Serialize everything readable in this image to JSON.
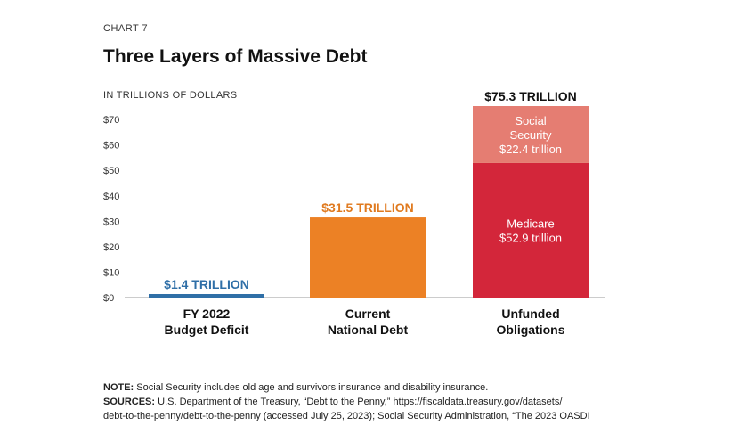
{
  "header": {
    "chart_number": "CHART 7",
    "title": "Three Layers of Massive Debt",
    "unit_label": "IN TRILLIONS OF DOLLARS"
  },
  "chart_data": {
    "type": "bar",
    "title": "Three Layers of Massive Debt",
    "ylabel": "IN TRILLIONS OF DOLLARS",
    "ylim": [
      0,
      75.3
    ],
    "yticks": [
      0,
      10,
      20,
      30,
      40,
      50,
      60,
      70
    ],
    "ytick_labels": [
      "$0",
      "$10",
      "$20",
      "$30",
      "$40",
      "$50",
      "$60",
      "$70"
    ],
    "grid": false,
    "categories": [
      {
        "line1": "FY 2022",
        "line2": "Budget Deficit"
      },
      {
        "line1": "Current",
        "line2": "National Debt"
      },
      {
        "line1": "Unfunded",
        "line2": "Obligations"
      }
    ],
    "bars": [
      {
        "total_label": "$1.4 TRILLION",
        "total_color": "#2f6fa7",
        "segments": [
          {
            "value": 1.4,
            "color": "#2f6fa7"
          }
        ]
      },
      {
        "total_label": "$31.5 TRILLION",
        "total_color": "#e07a1f",
        "segments": [
          {
            "value": 31.5,
            "color": "#ec8125"
          }
        ]
      },
      {
        "total_label": "$75.3 TRILLION",
        "total_color": "#111111",
        "segments": [
          {
            "value": 52.9,
            "color": "#d3263a",
            "label": [
              "Medicare",
              "$52.9 trillion"
            ]
          },
          {
            "value": 22.4,
            "color": "#e57d72",
            "label": [
              "Social",
              "Security",
              "$22.4 trillion"
            ]
          }
        ]
      }
    ]
  },
  "notes": {
    "note_label": "NOTE:",
    "note_text": " Social Security includes old age and survivors insurance and disability insurance.",
    "sources_label": "SOURCES:",
    "sources_text": " U.S. Department of the Treasury, “Debt to the Penny,” https://fiscaldata.treasury.gov/datasets/",
    "sources_text_2": "debt-to-the-penny/debt-to-the-penny (accessed July 25, 2023); Social Security Administration, “The 2023 OASDI"
  }
}
